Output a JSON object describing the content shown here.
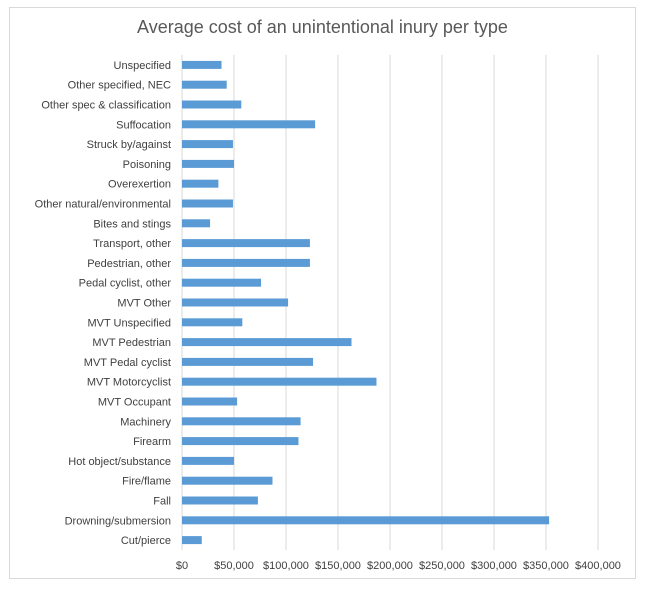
{
  "chart_data": {
    "type": "bar",
    "orientation": "horizontal",
    "title": "Average cost of an unintentional inury per type",
    "categories": [
      "Unspecified",
      "Other specified, NEC",
      "Other spec & classification",
      "Suffocation",
      "Struck by/against",
      "Poisoning",
      "Overexertion",
      "Other natural/environmental",
      "Bites and stings",
      "Transport, other",
      "Pedestrian, other",
      "Pedal cyclist, other",
      "MVT Other",
      "MVT Unspecified",
      "MVT Pedestrian",
      "MVT Pedal cyclist",
      "MVT Motorcyclist",
      "MVT Occupant",
      "Machinery",
      "Firearm",
      "Hot object/substance",
      "Fire/flame",
      "Fall",
      "Drowning/submersion",
      "Cut/pierce"
    ],
    "values": [
      38000,
      43000,
      57000,
      128000,
      49000,
      50000,
      35000,
      49000,
      27000,
      123000,
      123000,
      76000,
      102000,
      58000,
      163000,
      126000,
      187000,
      53000,
      114000,
      112000,
      50000,
      87000,
      73000,
      353000,
      19000
    ],
    "xlim": [
      0,
      400000
    ],
    "x_ticks": [
      0,
      50000,
      100000,
      150000,
      200000,
      250000,
      300000,
      350000,
      400000
    ],
    "x_tick_labels": [
      "$0",
      "$50,000",
      "$100,000",
      "$150,000",
      "$200,000",
      "$250,000",
      "$300,000",
      "$350,000",
      "$400,000"
    ],
    "grid": true,
    "legend": "none",
    "bar_color": "#5b9bd5",
    "grid_color": "#d9d9d9"
  }
}
